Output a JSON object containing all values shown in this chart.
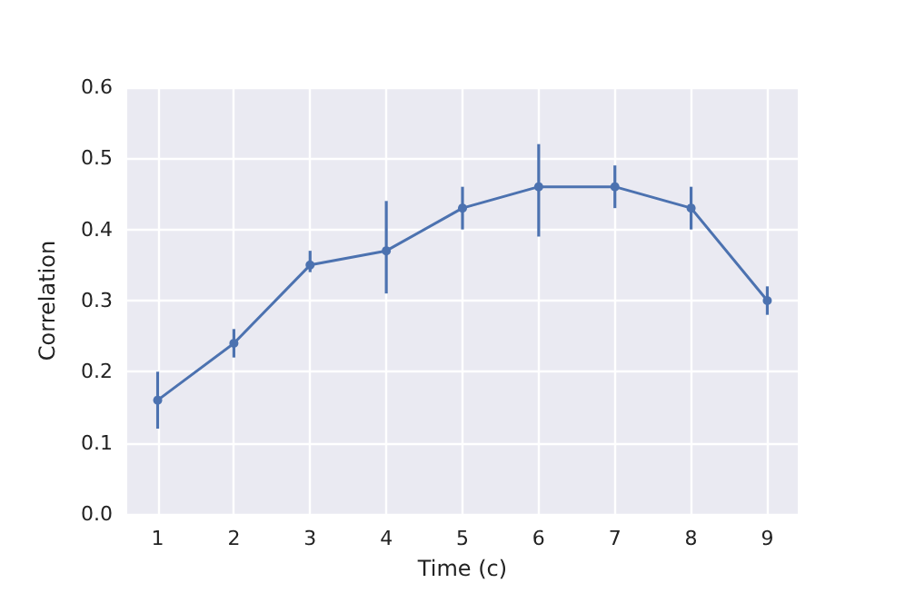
{
  "chart_data": {
    "type": "line",
    "xlabel": "Time (c)",
    "ylabel": "Correlation",
    "x": [
      1,
      2,
      3,
      4,
      5,
      6,
      7,
      8,
      9
    ],
    "series": [
      {
        "color": "#4c72b0",
        "values": [
          0.16,
          0.24,
          0.35,
          0.37,
          0.43,
          0.46,
          0.46,
          0.43,
          0.3
        ],
        "errors": [
          [
            0.12,
            0.2
          ],
          [
            0.22,
            0.26
          ],
          [
            0.34,
            0.37
          ],
          [
            0.31,
            0.44
          ],
          [
            0.4,
            0.46
          ],
          [
            0.39,
            0.52
          ],
          [
            0.43,
            0.49
          ],
          [
            0.4,
            0.46
          ],
          [
            0.28,
            0.32
          ]
        ]
      }
    ],
    "xlim": [
      0.6,
      9.4
    ],
    "xticks": [
      1,
      2,
      3,
      4,
      5,
      6,
      7,
      8,
      9
    ],
    "ylim": [
      0,
      0.6
    ],
    "yticks": [
      {
        "value": 0,
        "label": "0.0"
      },
      0.1,
      0.2,
      0.3,
      0.4,
      0.5,
      0.6
    ],
    "grid": true,
    "marker": "circle",
    "line_style": "solid"
  }
}
